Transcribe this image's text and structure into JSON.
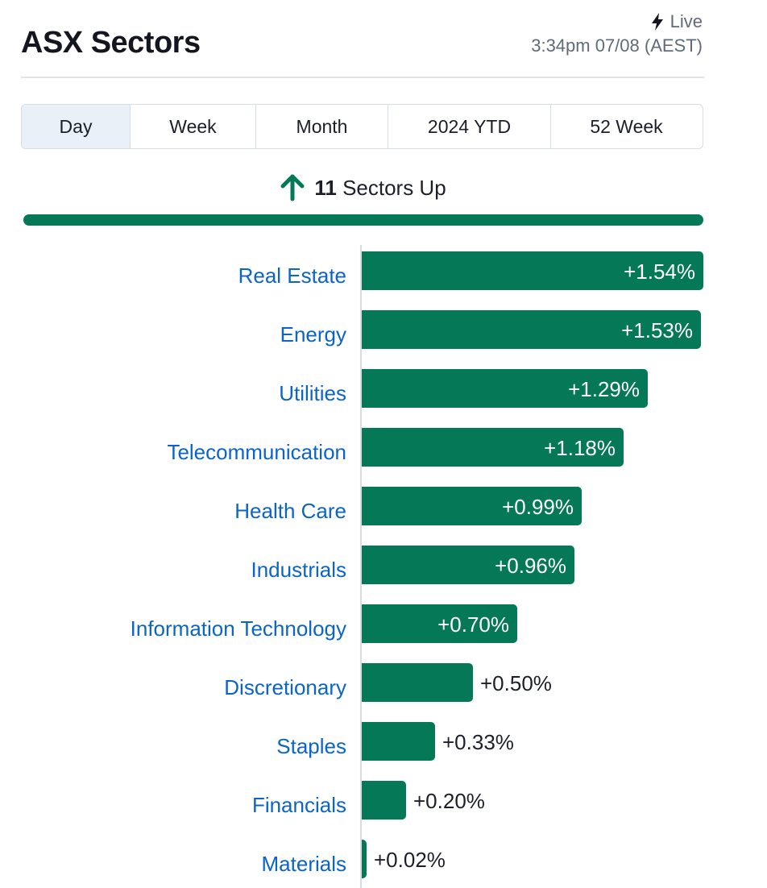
{
  "header": {
    "title": "ASX Sectors",
    "live_label": "Live",
    "timestamp": "3:34pm 07/08 (AEST)"
  },
  "tabs": [
    {
      "label": "Day",
      "active": true
    },
    {
      "label": "Week",
      "active": false
    },
    {
      "label": "Month",
      "active": false
    },
    {
      "label": "2024 YTD",
      "active": false
    },
    {
      "label": "52 Week",
      "active": false
    }
  ],
  "summary": {
    "count": "11",
    "text": "Sectors Up",
    "icon": "arrow-up-icon",
    "color": "#047857"
  },
  "colors": {
    "bar": "#047857",
    "label": "#0b64c8"
  },
  "chart_data": {
    "type": "bar",
    "orientation": "horizontal",
    "categories": [
      "Real Estate",
      "Energy",
      "Utilities",
      "Telecommunication",
      "Health Care",
      "Industrials",
      "Information Technology",
      "Discretionary",
      "Staples",
      "Financials",
      "Materials"
    ],
    "values": [
      1.54,
      1.53,
      1.29,
      1.18,
      0.99,
      0.96,
      0.7,
      0.5,
      0.33,
      0.2,
      0.02
    ],
    "labels": [
      "+1.54%",
      "+1.53%",
      "+1.29%",
      "+1.18%",
      "+0.99%",
      "+0.96%",
      "+0.70%",
      "+0.50%",
      "+0.33%",
      "+0.20%",
      "+0.02%"
    ],
    "xlim": [
      0,
      1.54
    ],
    "grid": false,
    "legend": "none"
  }
}
